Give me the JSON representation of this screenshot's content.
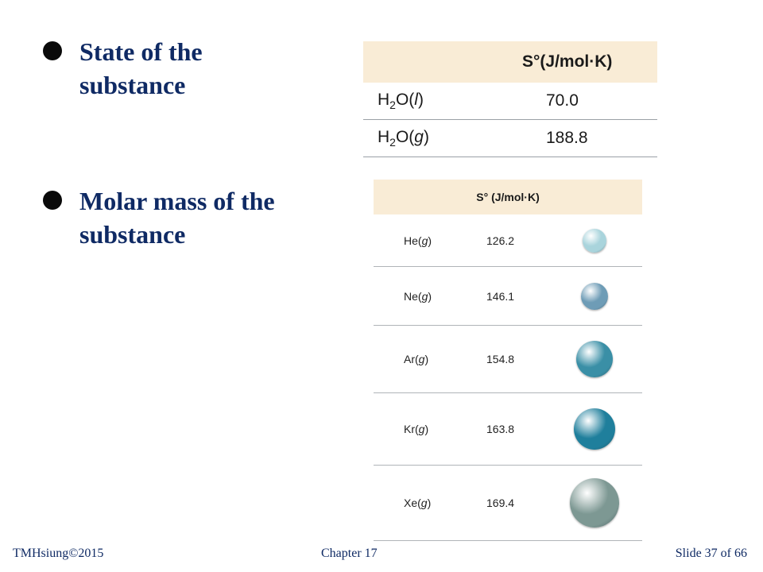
{
  "bullets": [
    "State of the substance",
    "Molar mass of the substance"
  ],
  "table1": {
    "header": "S°(J/mol·K)",
    "rows": [
      {
        "name_base": "H",
        "name_sub": "2",
        "name_rest": "O(",
        "name_italic": "l",
        "name_end": ")",
        "value": "70.0"
      },
      {
        "name_base": "H",
        "name_sub": "2",
        "name_rest": "O(",
        "name_italic": "g",
        "name_end": ")",
        "value": "188.8"
      }
    ]
  },
  "table2": {
    "header": "S° (J/mol·K)",
    "rows": [
      {
        "element": "He",
        "state": "g",
        "value": "126.2",
        "color": "#a9d4dc"
      },
      {
        "element": "Ne",
        "state": "g",
        "value": "146.1",
        "color": "#6e9cb6"
      },
      {
        "element": "Ar",
        "state": "g",
        "value": "154.8",
        "color": "#3a8fa6"
      },
      {
        "element": "Kr",
        "state": "g",
        "value": "163.8",
        "color": "#1f7f9c"
      },
      {
        "element": "Xe",
        "state": "g",
        "value": "169.4",
        "color": "#7d9893"
      }
    ]
  },
  "footer": {
    "left": "TMHsiung©2015",
    "center": "Chapter 17",
    "right": "Slide 37 of 66"
  }
}
